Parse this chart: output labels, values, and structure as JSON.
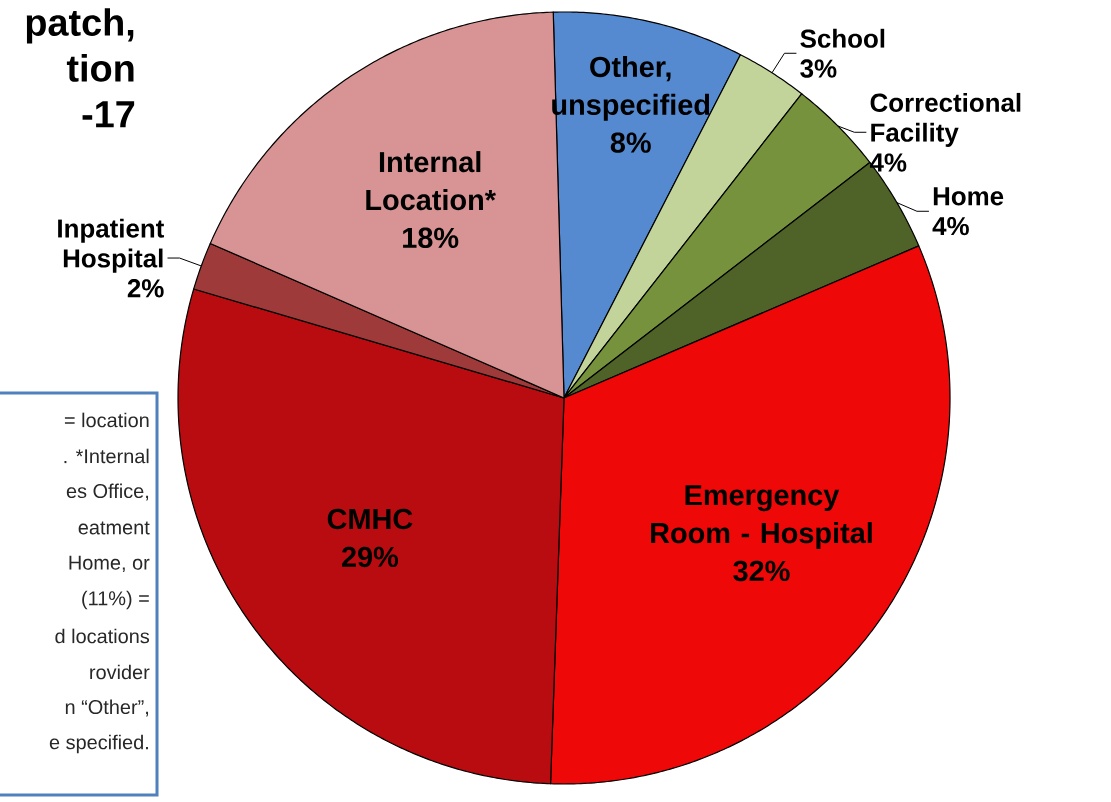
{
  "chart_data": {
    "type": "pie",
    "categories": [
      "Other, unspecified",
      "School",
      "Correctional Facility",
      "Home",
      "Emergency Room - Hospital",
      "CMHC",
      "Inpatient Hospital",
      "Internal Location*"
    ],
    "values": [
      8,
      3,
      4,
      4,
      32,
      29,
      2,
      18
    ],
    "value_labels": [
      "8%",
      "3%",
      "4%",
      "4%",
      "32%",
      "29%",
      "2%",
      "18%"
    ],
    "colors": [
      "#568ad0",
      "#c3d49a",
      "#76923c",
      "#4f6228",
      "#ee0808",
      "#b80c10",
      "#9e3a3a",
      "#d89494"
    ],
    "title": "patch,\ntion\n-17",
    "annotations": [
      "= location",
      ". *Internal",
      "es Office,",
      "eatment",
      "Home, or",
      "(11%) =",
      "d locations",
      "rovider",
      "n “Other”,",
      "e specified."
    ]
  }
}
